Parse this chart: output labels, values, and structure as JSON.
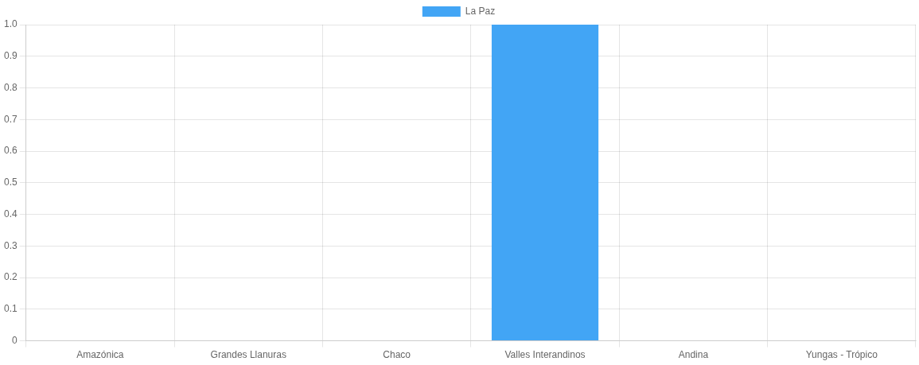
{
  "chart_data": {
    "type": "bar",
    "categories": [
      "Amazónica",
      "Grandes Llanuras",
      "Chaco",
      "Valles Interandinos",
      "Andina",
      "Yungas - Trópico"
    ],
    "series": [
      {
        "name": "La Paz",
        "color": "#42a5f5",
        "values": [
          0,
          0,
          0,
          1,
          0,
          0
        ]
      }
    ],
    "ylim": [
      0,
      1
    ],
    "yticks": [
      0,
      0.1,
      0.2,
      0.3,
      0.4,
      0.5,
      0.6,
      0.7,
      0.8,
      0.9,
      {
        "value": 1,
        "label": "1.0"
      }
    ],
    "grid": true,
    "legend": "top"
  }
}
